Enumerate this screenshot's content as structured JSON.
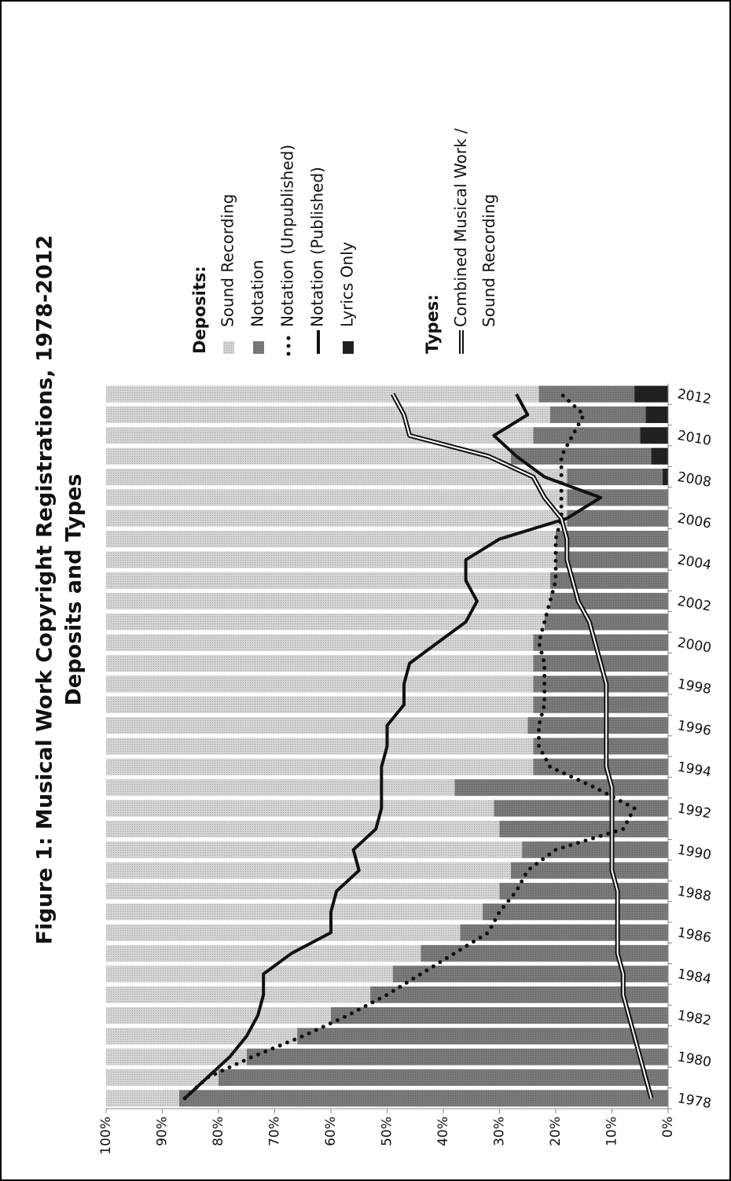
{
  "chart_data": {
    "type": "bar",
    "title": "Figure 1: Musical Work Copyright Registrations, 1978-2012",
    "subtitle": "Deposits and Types",
    "categories": [
      "1978",
      null,
      "1980",
      null,
      "1982",
      null,
      "1984",
      null,
      "1986",
      null,
      "1988",
      null,
      "1990",
      null,
      "1992",
      null,
      "1994",
      null,
      "1996",
      null,
      "1998",
      null,
      "2000",
      null,
      "2002",
      null,
      "2004",
      null,
      "2006",
      null,
      "2008",
      null,
      "2010",
      null,
      "2012"
    ],
    "ylim": [
      0,
      100
    ],
    "yticks": [
      {
        "value": 0,
        "label": "0%"
      },
      {
        "value": 10,
        "label": "10%"
      },
      {
        "value": 20,
        "label": "20%"
      },
      {
        "value": 30,
        "label": "30%"
      },
      {
        "value": 40,
        "label": "40%"
      },
      {
        "value": 50,
        "label": "50%"
      },
      {
        "value": 60,
        "label": "60%"
      },
      {
        "value": 70,
        "label": "70%"
      },
      {
        "value": 80,
        "label": "80%"
      },
      {
        "value": 90,
        "label": "90%"
      },
      {
        "value": 100,
        "label": "100%"
      }
    ],
    "legend_titles": [
      "Deposits:",
      "Types:"
    ],
    "series": [
      {
        "name": "Sound Recording",
        "type": "bar",
        "group": 0,
        "color": "#d4d4d4",
        "values": [
          13,
          20,
          25,
          34,
          40,
          47,
          51,
          56,
          63,
          67,
          70,
          72,
          74,
          70,
          69,
          62,
          76,
          76,
          75,
          76,
          76,
          76,
          76,
          78,
          79,
          79,
          80,
          80,
          82,
          82,
          82,
          72,
          76,
          79,
          77
        ]
      },
      {
        "name": "Notation",
        "type": "bar",
        "group": 0,
        "color": "#7a7a7a",
        "values": [
          87,
          80,
          75,
          66,
          60,
          53,
          49,
          44,
          37,
          33,
          30,
          28,
          26,
          30,
          31,
          38,
          24,
          24,
          25,
          24,
          24,
          24,
          24,
          22,
          21,
          21,
          20,
          20,
          18,
          18,
          17,
          25,
          19,
          17,
          17
        ]
      },
      {
        "name": "Notation (Unpublished)",
        "type": "line",
        "style": "dotted",
        "group": 0,
        "color": "#111111",
        "values": [
          86,
          82,
          74,
          65,
          57,
          50,
          44,
          38,
          32,
          30,
          27,
          25,
          20,
          8,
          6,
          13,
          21,
          23,
          23,
          22,
          22,
          22,
          23,
          22,
          21,
          20,
          20,
          20,
          19,
          19,
          19,
          19,
          17,
          15,
          19
        ]
      },
      {
        "name": "Notation (Published)",
        "type": "line",
        "style": "solid",
        "group": 0,
        "color": "#111111",
        "values": [
          86,
          82,
          78,
          75,
          73,
          72,
          72,
          67,
          60,
          60,
          59,
          55,
          56,
          52,
          51,
          51,
          51,
          50,
          50,
          47,
          47,
          46,
          41,
          36,
          34,
          36,
          36,
          30,
          18,
          12,
          22,
          27,
          31,
          25,
          27
        ]
      },
      {
        "name": "Lyrics Only",
        "type": "bar",
        "group": 0,
        "color": "#222222",
        "values": [
          0,
          0,
          0,
          0,
          0,
          0,
          0,
          0,
          0,
          0,
          0,
          0,
          0,
          0,
          0,
          0,
          0,
          0,
          0,
          0,
          0,
          0,
          0,
          0,
          0,
          0,
          0,
          0,
          0,
          0,
          1,
          3,
          5,
          4,
          6
        ]
      },
      {
        "name": "Combined Musical Work / Sound Recording",
        "type": "line",
        "style": "double",
        "group": 1,
        "color": "#111111",
        "values": [
          3,
          4,
          5,
          6,
          7,
          8,
          8,
          9,
          9,
          9,
          9,
          10,
          10,
          10,
          10,
          10,
          11,
          11,
          11,
          11,
          11,
          12,
          13,
          14,
          16,
          17,
          18,
          18,
          19,
          22,
          24,
          32,
          46,
          47,
          49
        ]
      }
    ]
  }
}
